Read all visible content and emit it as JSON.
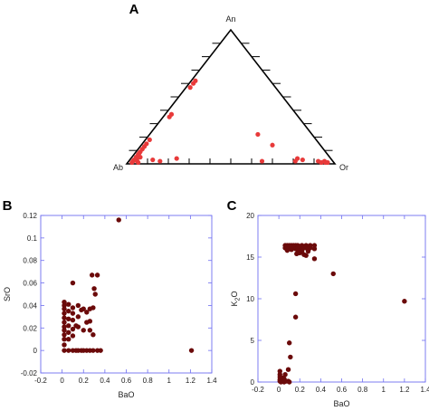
{
  "chart_data": [
    {
      "type": "scatter",
      "panel": "A",
      "subtype": "ternary",
      "vertices": {
        "top": "An",
        "left": "Ab",
        "right": "Or"
      },
      "marker_color": "#e83a3a",
      "points": [
        {
          "An": 0.62,
          "Ab": 0.36,
          "Or": 0.02
        },
        {
          "An": 0.6,
          "Ab": 0.38,
          "Or": 0.02
        },
        {
          "An": 0.57,
          "Ab": 0.41,
          "Or": 0.02
        },
        {
          "An": 0.37,
          "Ab": 0.6,
          "Or": 0.03
        },
        {
          "An": 0.35,
          "Ab": 0.62,
          "Or": 0.03
        },
        {
          "An": 0.18,
          "Ab": 0.8,
          "Or": 0.02
        },
        {
          "An": 0.15,
          "Ab": 0.83,
          "Or": 0.02
        },
        {
          "An": 0.13,
          "Ab": 0.85,
          "Or": 0.02
        },
        {
          "An": 0.11,
          "Ab": 0.87,
          "Or": 0.02
        },
        {
          "An": 0.09,
          "Ab": 0.89,
          "Or": 0.02
        },
        {
          "An": 0.08,
          "Ab": 0.9,
          "Or": 0.02
        },
        {
          "An": 0.07,
          "Ab": 0.91,
          "Or": 0.02
        },
        {
          "An": 0.05,
          "Ab": 0.93,
          "Or": 0.02
        },
        {
          "An": 0.05,
          "Ab": 0.91,
          "Or": 0.04
        },
        {
          "An": 0.04,
          "Ab": 0.93,
          "Or": 0.03
        },
        {
          "An": 0.03,
          "Ab": 0.95,
          "Or": 0.02
        },
        {
          "An": 0.02,
          "Ab": 0.96,
          "Or": 0.02
        },
        {
          "An": 0.02,
          "Ab": 0.94,
          "Or": 0.04
        },
        {
          "An": 0.01,
          "Ab": 0.97,
          "Or": 0.02
        },
        {
          "An": 0.01,
          "Ab": 0.94,
          "Or": 0.05
        },
        {
          "An": 0.03,
          "Ab": 0.86,
          "Or": 0.11
        },
        {
          "An": 0.02,
          "Ab": 0.83,
          "Or": 0.15
        },
        {
          "An": 0.04,
          "Ab": 0.74,
          "Or": 0.22
        },
        {
          "An": 0.22,
          "Ab": 0.26,
          "Or": 0.52
        },
        {
          "An": 0.14,
          "Ab": 0.23,
          "Or": 0.63
        },
        {
          "An": 0.02,
          "Ab": 0.34,
          "Or": 0.64
        },
        {
          "An": 0.04,
          "Ab": 0.16,
          "Or": 0.8
        },
        {
          "An": 0.02,
          "Ab": 0.18,
          "Or": 0.8
        },
        {
          "An": 0.03,
          "Ab": 0.14,
          "Or": 0.83
        },
        {
          "An": 0.02,
          "Ab": 0.07,
          "Or": 0.91
        },
        {
          "An": 0.01,
          "Ab": 0.06,
          "Or": 0.93
        },
        {
          "An": 0.02,
          "Ab": 0.04,
          "Or": 0.94
        },
        {
          "An": 0.01,
          "Ab": 0.04,
          "Or": 0.95
        },
        {
          "An": 0.01,
          "Ab": 0.03,
          "Or": 0.96
        }
      ]
    },
    {
      "type": "scatter",
      "panel": "B",
      "xlabel": "BaO",
      "ylabel": "SrO",
      "xlim": [
        -0.2,
        1.4
      ],
      "ylim": [
        -0.02,
        0.12
      ],
      "xticks": [
        "-0.2",
        "0",
        "0.2",
        "0.4",
        "0.6",
        "0.8",
        "1",
        "1.2",
        "1.4"
      ],
      "yticks": [
        "-0.02",
        "0",
        "0.02",
        "0.04",
        "0.06",
        "0.08",
        "0.1",
        "0.12"
      ],
      "marker_color": "#6b0a0a",
      "points": [
        [
          0.53,
          0.116
        ],
        [
          1.21,
          0.0
        ],
        [
          0.1,
          0.06
        ],
        [
          0.33,
          0.067
        ],
        [
          0.28,
          0.067
        ],
        [
          0.3,
          0.055
        ],
        [
          0.02,
          0.043
        ],
        [
          0.02,
          0.04
        ],
        [
          0.02,
          0.037
        ],
        [
          0.02,
          0.033
        ],
        [
          0.02,
          0.029
        ],
        [
          0.02,
          0.025
        ],
        [
          0.02,
          0.021
        ],
        [
          0.02,
          0.018
        ],
        [
          0.02,
          0.014
        ],
        [
          0.02,
          0.01
        ],
        [
          0.02,
          0.005
        ],
        [
          0.02,
          0.0
        ],
        [
          0.06,
          0.041
        ],
        [
          0.06,
          0.035
        ],
        [
          0.06,
          0.028
        ],
        [
          0.06,
          0.022
        ],
        [
          0.06,
          0.016
        ],
        [
          0.06,
          0.01
        ],
        [
          0.06,
          0.0
        ],
        [
          0.1,
          0.038
        ],
        [
          0.1,
          0.033
        ],
        [
          0.1,
          0.027
        ],
        [
          0.1,
          0.019
        ],
        [
          0.1,
          0.013
        ],
        [
          0.1,
          0.0
        ],
        [
          0.13,
          0.022
        ],
        [
          0.13,
          0.0
        ],
        [
          0.15,
          0.04
        ],
        [
          0.15,
          0.03
        ],
        [
          0.15,
          0.021
        ],
        [
          0.15,
          0.0
        ],
        [
          0.18,
          0.036
        ],
        [
          0.18,
          0.0
        ],
        [
          0.2,
          0.037
        ],
        [
          0.2,
          0.018
        ],
        [
          0.2,
          0.0
        ],
        [
          0.23,
          0.034
        ],
        [
          0.23,
          0.025
        ],
        [
          0.23,
          0.0
        ],
        [
          0.26,
          0.037
        ],
        [
          0.26,
          0.026
        ],
        [
          0.26,
          0.018
        ],
        [
          0.26,
          0.0
        ],
        [
          0.29,
          0.038
        ],
        [
          0.29,
          0.014
        ],
        [
          0.29,
          0.0
        ],
        [
          0.31,
          0.05
        ],
        [
          0.33,
          0.0
        ],
        [
          0.36,
          0.0
        ]
      ]
    },
    {
      "type": "scatter",
      "panel": "C",
      "xlabel": "BaO",
      "ylabel": "K",
      "ylabel_sub": "2",
      "ylabel_tail": "O",
      "xlim": [
        -0.2,
        1.4
      ],
      "ylim": [
        0,
        20
      ],
      "xticks": [
        "-0.2",
        "0",
        "0.2",
        "0.4",
        "0.6",
        "0.8",
        "1",
        "1.2",
        "1.4"
      ],
      "yticks": [
        "0",
        "5",
        "10",
        "15",
        "20"
      ],
      "marker_color": "#6b0a0a",
      "points": [
        [
          1.2,
          9.7
        ],
        [
          0.52,
          13.0
        ],
        [
          0.34,
          14.8
        ],
        [
          0.26,
          15.2
        ],
        [
          0.16,
          10.6
        ],
        [
          0.16,
          7.8
        ],
        [
          0.1,
          4.7
        ],
        [
          0.11,
          3.0
        ],
        [
          0.09,
          1.5
        ],
        [
          0.06,
          0.9
        ],
        [
          0.05,
          0.4
        ],
        [
          0.03,
          0.2
        ],
        [
          0.09,
          0.1
        ],
        [
          0.07,
          0.1
        ],
        [
          0.01,
          1.3
        ],
        [
          0.01,
          0.9
        ],
        [
          0.01,
          0.6
        ],
        [
          0.01,
          0.3
        ],
        [
          0.01,
          0.1
        ],
        [
          0.02,
          0.0
        ],
        [
          0.04,
          0.5
        ],
        [
          0.05,
          0.0
        ],
        [
          0.1,
          0.0
        ],
        [
          0.06,
          16.4
        ],
        [
          0.08,
          16.4
        ],
        [
          0.1,
          16.4
        ],
        [
          0.12,
          16.4
        ],
        [
          0.14,
          16.4
        ],
        [
          0.16,
          16.4
        ],
        [
          0.18,
          16.4
        ],
        [
          0.2,
          16.3
        ],
        [
          0.22,
          16.4
        ],
        [
          0.24,
          16.3
        ],
        [
          0.26,
          16.4
        ],
        [
          0.28,
          16.3
        ],
        [
          0.3,
          16.4
        ],
        [
          0.34,
          16.4
        ],
        [
          0.06,
          16.1
        ],
        [
          0.08,
          16.1
        ],
        [
          0.1,
          16.1
        ],
        [
          0.12,
          16.2
        ],
        [
          0.14,
          16.1
        ],
        [
          0.16,
          16.0
        ],
        [
          0.18,
          16.1
        ],
        [
          0.2,
          16.1
        ],
        [
          0.22,
          16.0
        ],
        [
          0.24,
          16.1
        ],
        [
          0.26,
          16.1
        ],
        [
          0.28,
          16.0
        ],
        [
          0.3,
          16.1
        ],
        [
          0.34,
          16.0
        ],
        [
          0.08,
          15.8
        ],
        [
          0.12,
          15.9
        ],
        [
          0.18,
          15.8
        ],
        [
          0.22,
          15.7
        ],
        [
          0.28,
          15.7
        ],
        [
          0.17,
          15.4
        ],
        [
          0.2,
          15.5
        ],
        [
          0.24,
          15.3
        ]
      ]
    }
  ]
}
